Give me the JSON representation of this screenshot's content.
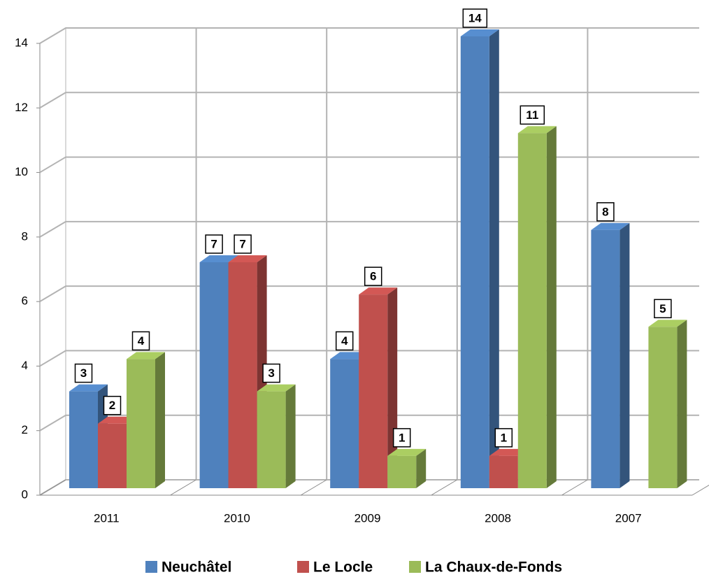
{
  "chart_data": {
    "type": "bar3d",
    "categories": [
      "2011",
      "2010",
      "2009",
      "2008",
      "2007"
    ],
    "series": [
      {
        "name": "Neuchâtel",
        "color": "#4f81bd",
        "values": [
          3,
          7,
          4,
          14,
          8
        ]
      },
      {
        "name": "Le Locle",
        "color": "#c0504d",
        "values": [
          2,
          7,
          6,
          1,
          null
        ]
      },
      {
        "name": "La Chaux-de-Fonds",
        "color": "#9bbb59",
        "values": [
          4,
          3,
          1,
          11,
          5
        ]
      }
    ],
    "ylim": [
      0,
      14
    ],
    "yticks": [
      0,
      2,
      4,
      6,
      8,
      10,
      12,
      14
    ],
    "grid": true,
    "legend": "bottom"
  }
}
